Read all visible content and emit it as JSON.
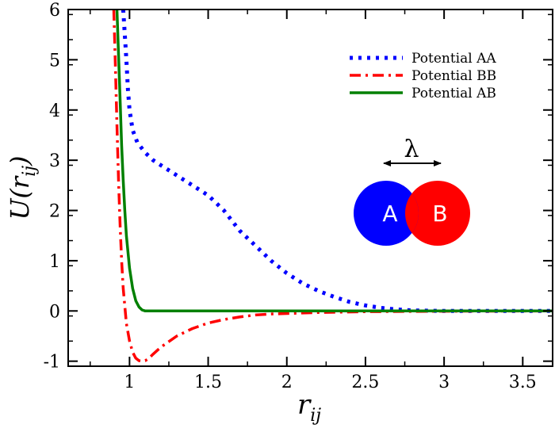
{
  "chart_data": {
    "type": "line",
    "xlabel": "r",
    "xlabel_sub": "ij",
    "ylabel": "U(r",
    "ylabel_sub": "ij",
    "ylabel_close": ")",
    "xlim": [
      0.61,
      3.69
    ],
    "ylim": [
      -1.1,
      6.0
    ],
    "xticks": [
      1,
      1.5,
      2,
      2.5,
      3,
      3.5
    ],
    "xtick_labels": [
      "1",
      "1.5",
      "2",
      "2.5",
      "3",
      "3.5"
    ],
    "yticks": [
      -1,
      0,
      1,
      2,
      3,
      4,
      5,
      6
    ],
    "ytick_labels": [
      "-1",
      "0",
      "1",
      "2",
      "3",
      "4",
      "5",
      "6"
    ],
    "grid": false,
    "legend_position": "top-right",
    "series": [
      {
        "name": "Potential AA",
        "color": "#0000ff",
        "dash": "dotted",
        "x": [
          0.96,
          0.97,
          0.98,
          0.99,
          1.0,
          1.02,
          1.05,
          1.1,
          1.15,
          1.2,
          1.3,
          1.4,
          1.5,
          1.6,
          1.7,
          1.8,
          1.9,
          2.0,
          2.1,
          2.2,
          2.3,
          2.4,
          2.5,
          2.6,
          2.7,
          2.8,
          2.9,
          3.0,
          3.2,
          3.5,
          3.69
        ],
        "y": [
          6.0,
          5.5,
          5.0,
          4.4,
          4.0,
          3.6,
          3.35,
          3.15,
          3.0,
          2.9,
          2.7,
          2.5,
          2.3,
          2.0,
          1.6,
          1.3,
          1.0,
          0.75,
          0.55,
          0.4,
          0.28,
          0.18,
          0.11,
          0.06,
          0.03,
          0.01,
          0.005,
          0.0,
          0.0,
          0.0,
          0.0
        ]
      },
      {
        "name": "Potential BB",
        "color": "#ff0000",
        "dash": "dashdot",
        "x": [
          0.9,
          0.91,
          0.92,
          0.93,
          0.94,
          0.95,
          0.96,
          0.98,
          1.0,
          1.02,
          1.04,
          1.06,
          1.08,
          1.1,
          1.12,
          1.15,
          1.2,
          1.3,
          1.4,
          1.5,
          1.6,
          1.7,
          1.8,
          1.9,
          2.0,
          2.2,
          2.5,
          3.0,
          3.69
        ],
        "y": [
          6.0,
          4.9,
          3.7,
          2.6,
          1.7,
          1.0,
          0.45,
          -0.25,
          -0.6,
          -0.82,
          -0.94,
          -0.99,
          -1.0,
          -0.99,
          -0.95,
          -0.86,
          -0.72,
          -0.5,
          -0.35,
          -0.24,
          -0.17,
          -0.12,
          -0.08,
          -0.06,
          -0.05,
          -0.03,
          -0.015,
          -0.005,
          0.0
        ]
      },
      {
        "name": "Potential AB",
        "color": "#008000",
        "dash": "solid",
        "x": [
          0.92,
          0.93,
          0.94,
          0.95,
          0.96,
          0.97,
          0.98,
          1.0,
          1.02,
          1.04,
          1.06,
          1.08,
          1.1,
          1.12,
          1.2,
          1.5,
          2.0,
          2.5,
          3.0,
          3.69
        ],
        "y": [
          6.0,
          5.1,
          4.2,
          3.3,
          2.6,
          2.0,
          1.5,
          0.85,
          0.45,
          0.2,
          0.08,
          0.02,
          0.0,
          0.0,
          0.0,
          0.0,
          0.0,
          0.0,
          0.0,
          0.0
        ]
      }
    ]
  },
  "inset": {
    "lambda": "λ",
    "disk_a_label": "A",
    "disk_b_label": "B",
    "disk_a_color": "#0000ff",
    "disk_b_color": "#ff0000"
  }
}
